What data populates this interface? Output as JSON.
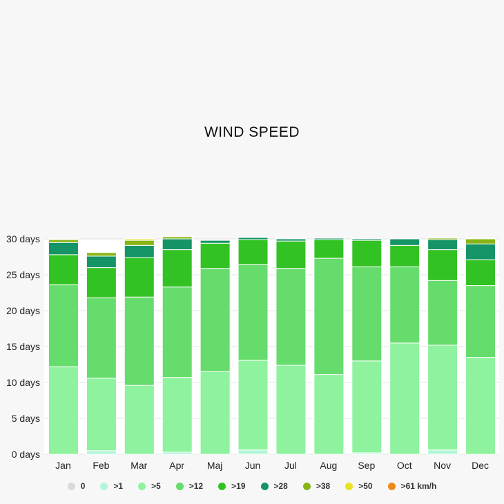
{
  "chart_data": {
    "type": "bar",
    "stacked": true,
    "title": "WIND SPEED",
    "categories": [
      "Jan",
      "Feb",
      "Mar",
      "Apr",
      "Maj",
      "Jun",
      "Jul",
      "Aug",
      "Sep",
      "Oct",
      "Nov",
      "Dec"
    ],
    "y_tick_labels": [
      "0 days",
      "5 days",
      "10 days",
      "15 days",
      "20 days",
      "25 days",
      "30 days"
    ],
    "ylim": [
      0,
      30
    ],
    "grid": true,
    "legend_position": "bottom",
    "series": [
      {
        "name": "0",
        "color": "#ddd9d9",
        "values": [
          0,
          0,
          0,
          0,
          0,
          0,
          0,
          0,
          0,
          0,
          0,
          0
        ]
      },
      {
        "name": ">1",
        "color": "#b2f5d8",
        "values": [
          0,
          0.5,
          0,
          0.3,
          0,
          0.6,
          0,
          0,
          0.2,
          0,
          0.6,
          0
        ]
      },
      {
        "name": ">5",
        "color": "#8ef29f",
        "values": [
          12.2,
          10.1,
          9.6,
          10.4,
          11.5,
          12.5,
          12.4,
          11.1,
          12.8,
          15.5,
          14.6,
          13.5
        ]
      },
      {
        "name": ">12",
        "color": "#66dc6c",
        "values": [
          11.4,
          11.2,
          12.3,
          12.6,
          14.4,
          13.3,
          13.5,
          16.2,
          13.1,
          10.6,
          9.0,
          10.0
        ]
      },
      {
        "name": ">19",
        "color": "#33c223",
        "values": [
          4.2,
          4.2,
          5.5,
          5.2,
          3.5,
          3.5,
          3.8,
          2.6,
          3.7,
          3.0,
          4.3,
          3.6
        ]
      },
      {
        "name": ">28",
        "color": "#159465",
        "values": [
          1.7,
          1.6,
          1.7,
          1.5,
          0.4,
          0.3,
          0.3,
          0.2,
          0.2,
          0.9,
          1.4,
          2.2
        ]
      },
      {
        "name": ">38",
        "color": "#88b415",
        "values": [
          0.4,
          0.5,
          0.7,
          0.3,
          0.1,
          0.1,
          0.1,
          0,
          0.1,
          0,
          0.2,
          0.7
        ]
      },
      {
        "name": ">50",
        "color": "#e9e125",
        "values": [
          0.1,
          0.1,
          0.2,
          0,
          0,
          0,
          0,
          0,
          0,
          0,
          0,
          0.1
        ]
      },
      {
        "name": ">61 km/h",
        "color": "#ee8a17",
        "values": [
          0,
          0,
          0,
          0,
          0,
          0,
          0,
          0,
          0,
          0,
          0,
          0
        ]
      }
    ]
  }
}
